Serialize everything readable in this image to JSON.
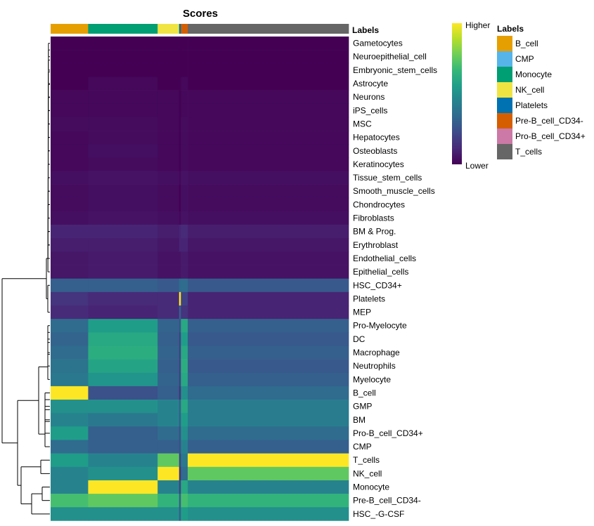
{
  "chart_data": {
    "type": "heatmap",
    "title": "Scores",
    "annotation_title": "Labels",
    "color_scale": {
      "high_label": "Higher",
      "low_label": "Lower",
      "colors": [
        "#440154",
        "#482878",
        "#3e4989",
        "#31688e",
        "#26828e",
        "#1f9e89",
        "#35b779",
        "#6ece58",
        "#b5de2b",
        "#fde725"
      ]
    },
    "legend": {
      "title": "Labels",
      "placement": "right",
      "entries": [
        {
          "label": "B_cell",
          "color": "#E69F00"
        },
        {
          "label": "CMP",
          "color": "#56B4E9"
        },
        {
          "label": "Monocyte",
          "color": "#009E73"
        },
        {
          "label": "NK_cell",
          "color": "#F0E442"
        },
        {
          "label": "Platelets",
          "color": "#0072B2"
        },
        {
          "label": "Pre-B_cell_CD34-",
          "color": "#D55E00"
        },
        {
          "label": "Pro-B_cell_CD34+",
          "color": "#CC79A7"
        },
        {
          "label": "T_cells",
          "color": "#666666"
        }
      ]
    },
    "column_groups": [
      {
        "label": "B_cell",
        "fraction": 0.126
      },
      {
        "label": "Monocyte",
        "fraction": 0.233
      },
      {
        "label": "NK_cell",
        "fraction": 0.072
      },
      {
        "label": "Platelets",
        "fraction": 0.006
      },
      {
        "label": "Pre-B_cell_CD34-",
        "fraction": 0.023
      },
      {
        "label": "T_cells",
        "fraction": 0.54
      }
    ],
    "rows": [
      "Gametocytes",
      "Neuroepithelial_cell",
      "Embryonic_stem_cells",
      "Astrocyte",
      "Neurons",
      "iPS_cells",
      "MSC",
      "Hepatocytes",
      "Osteoblasts",
      "Keratinocytes",
      "Tissue_stem_cells",
      "Smooth_muscle_cells",
      "Chondrocytes",
      "Fibroblasts",
      "BM & Prog.",
      "Erythroblast",
      "Endothelial_cells",
      "Epithelial_cells",
      "HSC_CD34+",
      "Platelets",
      "MEP",
      "Pro-Myelocyte",
      "DC",
      "Macrophage",
      "Neutrophils",
      "Myelocyte",
      "B_cell",
      "GMP",
      "BM",
      "Pro-B_cell_CD34+",
      "CMP",
      "T_cells",
      "NK_cell",
      "Monocyte",
      "Pre-B_cell_CD34-",
      "HSC_-G-CSF"
    ],
    "group_scores": {
      "note_units": "approximate scaled score 0 (Lower) to 1 (Higher) per row for each column group",
      "B_cell": [
        0.0,
        0.0,
        0.0,
        0.0,
        0.02,
        0.02,
        0.03,
        0.02,
        0.02,
        0.02,
        0.04,
        0.03,
        0.03,
        0.04,
        0.1,
        0.08,
        0.06,
        0.06,
        0.3,
        0.15,
        0.12,
        0.35,
        0.32,
        0.35,
        0.38,
        0.4,
        1.0,
        0.5,
        0.45,
        0.55,
        0.35,
        0.55,
        0.45,
        0.45,
        0.7,
        0.5
      ],
      "Monocyte": [
        0.0,
        0.0,
        0.0,
        0.02,
        0.02,
        0.02,
        0.03,
        0.03,
        0.04,
        0.03,
        0.05,
        0.04,
        0.04,
        0.05,
        0.1,
        0.08,
        0.07,
        0.07,
        0.3,
        0.12,
        0.1,
        0.55,
        0.6,
        0.62,
        0.58,
        0.52,
        0.25,
        0.5,
        0.4,
        0.3,
        0.3,
        0.45,
        0.5,
        1.0,
        0.75,
        0.5
      ],
      "NK_cell": [
        0.0,
        0.0,
        0.0,
        0.0,
        0.02,
        0.02,
        0.02,
        0.02,
        0.02,
        0.02,
        0.04,
        0.03,
        0.03,
        0.04,
        0.08,
        0.06,
        0.05,
        0.05,
        0.28,
        0.12,
        0.12,
        0.32,
        0.3,
        0.32,
        0.3,
        0.32,
        0.3,
        0.45,
        0.45,
        0.35,
        0.3,
        0.75,
        1.0,
        0.45,
        0.65,
        0.5
      ],
      "Platelets": [
        0.0,
        0.0,
        0.0,
        0.0,
        0.0,
        0.0,
        0.0,
        0.0,
        0.0,
        0.0,
        0.02,
        0.0,
        0.0,
        0.02,
        0.1,
        0.1,
        0.05,
        0.05,
        0.35,
        1.0,
        0.3,
        0.25,
        0.2,
        0.2,
        0.2,
        0.2,
        0.15,
        0.3,
        0.3,
        0.25,
        0.25,
        0.2,
        0.15,
        0.2,
        0.3,
        0.3
      ],
      "Pre-B_cell_CD34-": [
        0.0,
        0.0,
        0.0,
        0.02,
        0.02,
        0.02,
        0.03,
        0.03,
        0.03,
        0.03,
        0.05,
        0.04,
        0.04,
        0.05,
        0.12,
        0.1,
        0.07,
        0.07,
        0.35,
        0.2,
        0.15,
        0.6,
        0.55,
        0.6,
        0.62,
        0.6,
        0.5,
        0.6,
        0.55,
        0.5,
        0.45,
        0.4,
        0.35,
        0.6,
        0.7,
        0.55
      ],
      "T_cells": [
        0.0,
        0.0,
        0.0,
        0.0,
        0.02,
        0.02,
        0.02,
        0.02,
        0.02,
        0.02,
        0.04,
        0.03,
        0.03,
        0.04,
        0.08,
        0.06,
        0.05,
        0.05,
        0.28,
        0.1,
        0.1,
        0.3,
        0.28,
        0.3,
        0.28,
        0.3,
        0.35,
        0.42,
        0.42,
        0.35,
        0.3,
        1.0,
        0.75,
        0.45,
        0.65,
        0.5
      ]
    }
  }
}
